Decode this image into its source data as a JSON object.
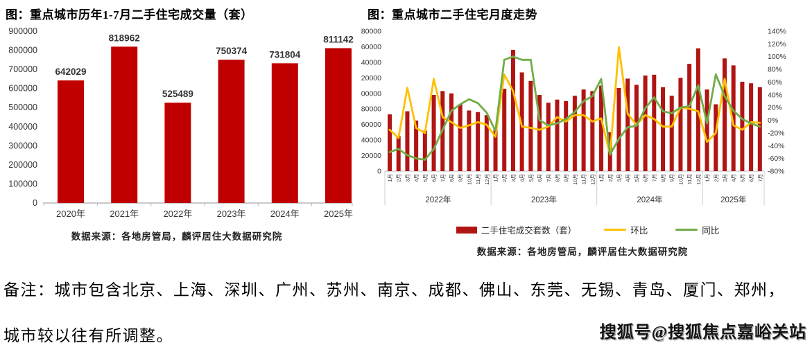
{
  "notes": {
    "line1": "备注：城市包含北京、上海、深圳、广州、苏州、南京、成都、佛山、东莞、无锡、青岛、厦门、郑州，",
    "line2": "城市较以往有所调整。"
  },
  "watermark": {
    "text": "搜狐号@搜狐焦点嘉峪关站"
  },
  "chart_data": [
    {
      "type": "bar",
      "title": "图：重点城市历年1-7月二手住宅成交量（套）",
      "source": "数据来源：各地房管局，麟评居住大数据研究院",
      "categories": [
        "2020年",
        "2021年",
        "2022年",
        "2023年",
        "2024年",
        "2025年"
      ],
      "values": [
        642029,
        818962,
        525489,
        750374,
        731804,
        811142
      ],
      "bar_color": "#c00000",
      "ylabel": "",
      "xlabel": "",
      "ylim": [
        0,
        900000
      ],
      "ystep": 100000,
      "grid": false,
      "data_labels": true
    },
    {
      "type": "bar+line",
      "title": "图：重点城市二手住宅月度走势",
      "source": "数据来源：各地房管局，麟评居住大数据研究院",
      "x_groups": [
        {
          "year": "2022年",
          "months": [
            "1月",
            "2月",
            "3月",
            "4月",
            "5月",
            "6月",
            "7月",
            "8月",
            "9月",
            "10月",
            "11月",
            "12月"
          ]
        },
        {
          "year": "2023年",
          "months": [
            "1月",
            "2月",
            "3月",
            "4月",
            "5月",
            "6月",
            "7月",
            "8月",
            "9月",
            "10月",
            "11月",
            "12月"
          ]
        },
        {
          "year": "2024年",
          "months": [
            "1月",
            "2月",
            "3月",
            "4月",
            "5月",
            "6月",
            "7月",
            "8月",
            "9月",
            "10月",
            "11月",
            "12月"
          ]
        },
        {
          "year": "2025年",
          "months": [
            "1月",
            "2月",
            "3月",
            "4月",
            "5月",
            "6月",
            "7月"
          ]
        }
      ],
      "left_axis": {
        "min": 0,
        "max": 180000,
        "step": 20000
      },
      "right_axis": {
        "min": -80,
        "max": 140,
        "step": 20,
        "suffix": "%"
      },
      "grid": false,
      "legend_position": "bottom",
      "series": [
        {
          "name": "二手住宅成交套数（套）",
          "type": "bar",
          "axis": "left",
          "color": "#b01513",
          "values": [
            73000,
            45000,
            77000,
            65000,
            52000,
            98000,
            103000,
            100000,
            86000,
            78000,
            76000,
            72000,
            53000,
            106000,
            156000,
            127000,
            116000,
            98000,
            88000,
            92000,
            90000,
            97000,
            105000,
            103000,
            110000,
            50000,
            107000,
            119000,
            111000,
            123000,
            124000,
            108000,
            97000,
            120000,
            138000,
            158000,
            105000,
            86000,
            145000,
            136000,
            115000,
            113000,
            108000
          ]
        },
        {
          "name": "环比",
          "type": "line",
          "axis": "right",
          "color": "#ffc000",
          "values": [
            -15,
            -28,
            51,
            -12,
            -20,
            65,
            5,
            -3,
            -12,
            -8,
            -3,
            -7,
            -26,
            72,
            46,
            -10,
            -12,
            -15,
            -10,
            5,
            -2,
            8,
            8,
            -2,
            3,
            -54,
            115,
            10,
            -7,
            8,
            2,
            -10,
            -10,
            20,
            18,
            14,
            -34,
            -20,
            65,
            -8,
            -15,
            -3,
            -4
          ]
        },
        {
          "name": "同比",
          "type": "line",
          "axis": "right",
          "color": "#70ad47",
          "values": [
            -50,
            -45,
            -55,
            -60,
            -62,
            -45,
            -15,
            15,
            25,
            33,
            27,
            12,
            -17,
            95,
            100,
            95,
            95,
            0,
            -8,
            -5,
            2,
            13,
            30,
            38,
            65,
            -54,
            -29,
            -11,
            -9,
            19,
            36,
            14,
            11,
            20,
            22,
            55,
            -5,
            72,
            38,
            15,
            2,
            -5,
            -10
          ]
        }
      ]
    }
  ]
}
